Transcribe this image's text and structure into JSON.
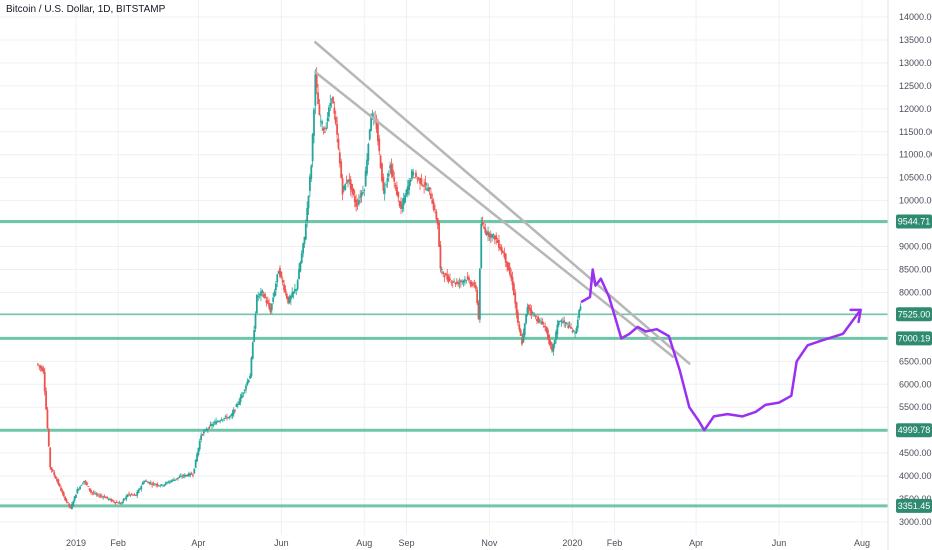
{
  "header": {
    "title": "Bitcoin / U.S. Dollar, 1D, BITSTAMP"
  },
  "chart_data": {
    "type": "candlestick",
    "title": "Bitcoin / U.S. Dollar, 1D, BITSTAMP",
    "ylim": [
      2900,
      14100
    ],
    "y_ticks": [
      "14000.00",
      "13500.00",
      "13000.00",
      "12500.00",
      "12000.00",
      "11500.00",
      "11000.00",
      "10500.00",
      "10000.00",
      "9500.00",
      "9000.00",
      "8500.00",
      "8000.00",
      "7500.00",
      "7000.00",
      "6500.00",
      "6000.00",
      "5500.00",
      "5000.00",
      "4500.00",
      "4000.00",
      "3500.00",
      "3000.00"
    ],
    "x_ticks": [
      {
        "label": "2019",
        "date": "2019-01-01"
      },
      {
        "label": "Feb",
        "date": "2019-02-01"
      },
      {
        "label": "Apr",
        "date": "2019-04-01"
      },
      {
        "label": "Jun",
        "date": "2019-06-01"
      },
      {
        "label": "Aug",
        "date": "2019-08-01"
      },
      {
        "label": "Sep",
        "date": "2019-09-01"
      },
      {
        "label": "Nov",
        "date": "2019-11-01"
      },
      {
        "label": "2020",
        "date": "2020-01-01"
      },
      {
        "label": "Feb",
        "date": "2020-02-01"
      },
      {
        "label": "Apr",
        "date": "2020-04-01"
      },
      {
        "label": "Jun",
        "date": "2020-06-01"
      },
      {
        "label": "Aug",
        "date": "2020-08-01"
      }
    ],
    "price_path": [
      [
        "2018-12-03",
        6450
      ],
      [
        "2018-12-08",
        6300
      ],
      [
        "2018-12-13",
        4200
      ],
      [
        "2018-12-18",
        3900
      ],
      [
        "2018-12-23",
        3550
      ],
      [
        "2018-12-28",
        3300
      ],
      [
        "2019-01-02",
        3700
      ],
      [
        "2019-01-07",
        3900
      ],
      [
        "2019-01-12",
        3650
      ],
      [
        "2019-01-17",
        3580
      ],
      [
        "2019-01-22",
        3550
      ],
      [
        "2019-01-28",
        3450
      ],
      [
        "2019-02-03",
        3400
      ],
      [
        "2019-02-08",
        3600
      ],
      [
        "2019-02-14",
        3580
      ],
      [
        "2019-02-20",
        3900
      ],
      [
        "2019-02-26",
        3830
      ],
      [
        "2019-03-05",
        3800
      ],
      [
        "2019-03-12",
        3900
      ],
      [
        "2019-03-20",
        4000
      ],
      [
        "2019-03-28",
        4050
      ],
      [
        "2019-04-03",
        4900
      ],
      [
        "2019-04-10",
        5100
      ],
      [
        "2019-04-18",
        5250
      ],
      [
        "2019-04-25",
        5300
      ],
      [
        "2019-05-02",
        5700
      ],
      [
        "2019-05-09",
        6200
      ],
      [
        "2019-05-14",
        7900
      ],
      [
        "2019-05-18",
        8000
      ],
      [
        "2019-05-24",
        7600
      ],
      [
        "2019-05-30",
        8500
      ],
      [
        "2019-06-06",
        7800
      ],
      [
        "2019-06-12",
        8100
      ],
      [
        "2019-06-18",
        9200
      ],
      [
        "2019-06-23",
        10800
      ],
      [
        "2019-06-26",
        12700
      ],
      [
        "2019-06-29",
        11800
      ],
      [
        "2019-07-03",
        11500
      ],
      [
        "2019-07-08",
        12300
      ],
      [
        "2019-07-12",
        11400
      ],
      [
        "2019-07-16",
        10200
      ],
      [
        "2019-07-20",
        10500
      ],
      [
        "2019-07-26",
        9900
      ],
      [
        "2019-08-01",
        10300
      ],
      [
        "2019-08-06",
        11900
      ],
      [
        "2019-08-10",
        11600
      ],
      [
        "2019-08-15",
        10200
      ],
      [
        "2019-08-20",
        10750
      ],
      [
        "2019-08-28",
        9800
      ],
      [
        "2019-09-05",
        10600
      ],
      [
        "2019-09-12",
        10400
      ],
      [
        "2019-09-18",
        10200
      ],
      [
        "2019-09-24",
        9500
      ],
      [
        "2019-09-26",
        8500
      ],
      [
        "2019-10-01",
        8300
      ],
      [
        "2019-10-08",
        8200
      ],
      [
        "2019-10-15",
        8300
      ],
      [
        "2019-10-22",
        8100
      ],
      [
        "2019-10-24",
        7450
      ],
      [
        "2019-10-26",
        9500
      ],
      [
        "2019-10-30",
        9300
      ],
      [
        "2019-11-05",
        9200
      ],
      [
        "2019-11-12",
        8800
      ],
      [
        "2019-11-18",
        8200
      ],
      [
        "2019-11-22",
        7300
      ],
      [
        "2019-11-25",
        6900
      ],
      [
        "2019-11-29",
        7700
      ],
      [
        "2019-12-05",
        7450
      ],
      [
        "2019-12-12",
        7250
      ],
      [
        "2019-12-17",
        6700
      ],
      [
        "2019-12-22",
        7400
      ],
      [
        "2019-12-28",
        7300
      ],
      [
        "2020-01-03",
        7100
      ],
      [
        "2020-01-08",
        7900
      ]
    ],
    "horizontal_levels": [
      {
        "value": 9544.71,
        "label": "9544.71"
      },
      {
        "value": 7525.0,
        "label": "7525.00"
      },
      {
        "value": 7000.19,
        "label": "7000.19"
      },
      {
        "value": 4999.78,
        "label": "4999.78"
      },
      {
        "value": 3351.45,
        "label": "3351.45"
      }
    ],
    "trendlines": [
      {
        "from": [
          "2019-06-26",
          13450
        ],
        "to": [
          "2020-03-27",
          6450
        ]
      },
      {
        "from": [
          "2019-06-26",
          12800
        ],
        "to": [
          "2020-03-15",
          6600
        ]
      }
    ],
    "projection": [
      [
        "2020-01-08",
        7800
      ],
      [
        "2020-01-14",
        7900
      ],
      [
        "2020-01-16",
        8500
      ],
      [
        "2020-01-18",
        8150
      ],
      [
        "2020-01-22",
        8300
      ],
      [
        "2020-01-28",
        7900
      ],
      [
        "2020-02-02",
        7400
      ],
      [
        "2020-02-06",
        7000
      ],
      [
        "2020-02-12",
        7100
      ],
      [
        "2020-02-18",
        7250
      ],
      [
        "2020-02-24",
        7150
      ],
      [
        "2020-03-03",
        7200
      ],
      [
        "2020-03-12",
        7050
      ],
      [
        "2020-03-20",
        6300
      ],
      [
        "2020-03-27",
        5500
      ],
      [
        "2020-04-03",
        5200
      ],
      [
        "2020-04-07",
        5000
      ],
      [
        "2020-04-14",
        5300
      ],
      [
        "2020-04-24",
        5350
      ],
      [
        "2020-05-05",
        5300
      ],
      [
        "2020-05-15",
        5400
      ],
      [
        "2020-05-22",
        5550
      ],
      [
        "2020-06-01",
        5600
      ],
      [
        "2020-06-10",
        5750
      ],
      [
        "2020-06-14",
        6500
      ],
      [
        "2020-06-22",
        6850
      ],
      [
        "2020-07-02",
        6950
      ],
      [
        "2020-07-18",
        7100
      ],
      [
        "2020-07-31",
        7620
      ]
    ],
    "colors": {
      "up": "#26a69a",
      "down": "#ef5350",
      "level": "#58bd9a",
      "level_badge": "#2e8b6f",
      "trendline": "#b7b7b7",
      "projection": "#9b30f0",
      "grid": "#eef0f3",
      "axis_text": "#4a4e59"
    },
    "grid": true
  }
}
